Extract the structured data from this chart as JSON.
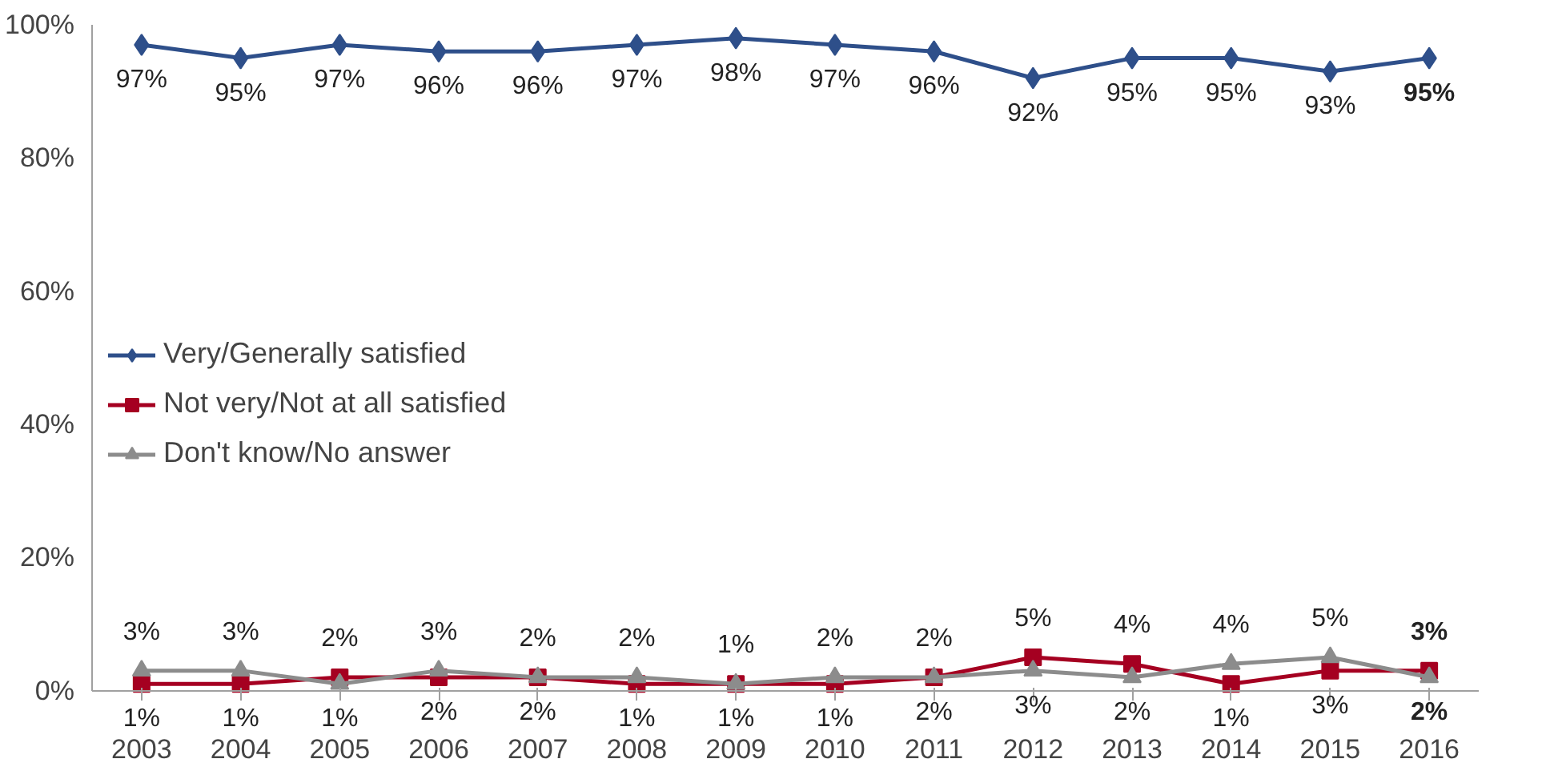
{
  "chart_data": {
    "type": "line",
    "categories": [
      "2003",
      "2004",
      "2005",
      "2006",
      "2007",
      "2008",
      "2009",
      "2010",
      "2011",
      "2012",
      "2013",
      "2014",
      "2015",
      "2016"
    ],
    "series": [
      {
        "name": "Very/Generally satisfied",
        "color": "#2e4f8a",
        "marker": "diamond",
        "values": [
          97,
          95,
          97,
          96,
          96,
          97,
          98,
          97,
          96,
          92,
          95,
          95,
          93,
          95
        ],
        "value_labels": [
          "97%",
          "95%",
          "97%",
          "96%",
          "96%",
          "97%",
          "98%",
          "97%",
          "96%",
          "92%",
          "95%",
          "95%",
          "93%",
          "95%"
        ]
      },
      {
        "name": "Not very/Not at all satisfied",
        "color": "#a50021",
        "marker": "square",
        "values": [
          1,
          1,
          2,
          2,
          2,
          1,
          1,
          1,
          2,
          5,
          4,
          1,
          3,
          3
        ],
        "value_labels": [
          "1%",
          "1%",
          "2%",
          "2%",
          "2%",
          "1%",
          "1%",
          "1%",
          "2%",
          "5%",
          "4%",
          "1%",
          "3%",
          "3%"
        ]
      },
      {
        "name": "Don't know/No answer",
        "color": "#8c8c8c",
        "marker": "triangle",
        "values": [
          3,
          3,
          1,
          3,
          2,
          2,
          1,
          2,
          2,
          3,
          2,
          4,
          5,
          2
        ],
        "value_labels": [
          "3%",
          "3%",
          "1%",
          "3%",
          "2%",
          "2%",
          "1%",
          "2%",
          "2%",
          "3%",
          "2%",
          "4%",
          "5%",
          "2%"
        ]
      }
    ],
    "ylim": [
      0,
      100
    ],
    "yticks": [
      {
        "value": 0,
        "label": "0%"
      },
      {
        "value": 20,
        "label": "20%"
      },
      {
        "value": 40,
        "label": "40%"
      },
      {
        "value": 60,
        "label": "60%"
      },
      {
        "value": 80,
        "label": "80%"
      },
      {
        "value": 100,
        "label": "100%"
      }
    ],
    "grid": false,
    "legend": "left",
    "line_style": "solid"
  }
}
